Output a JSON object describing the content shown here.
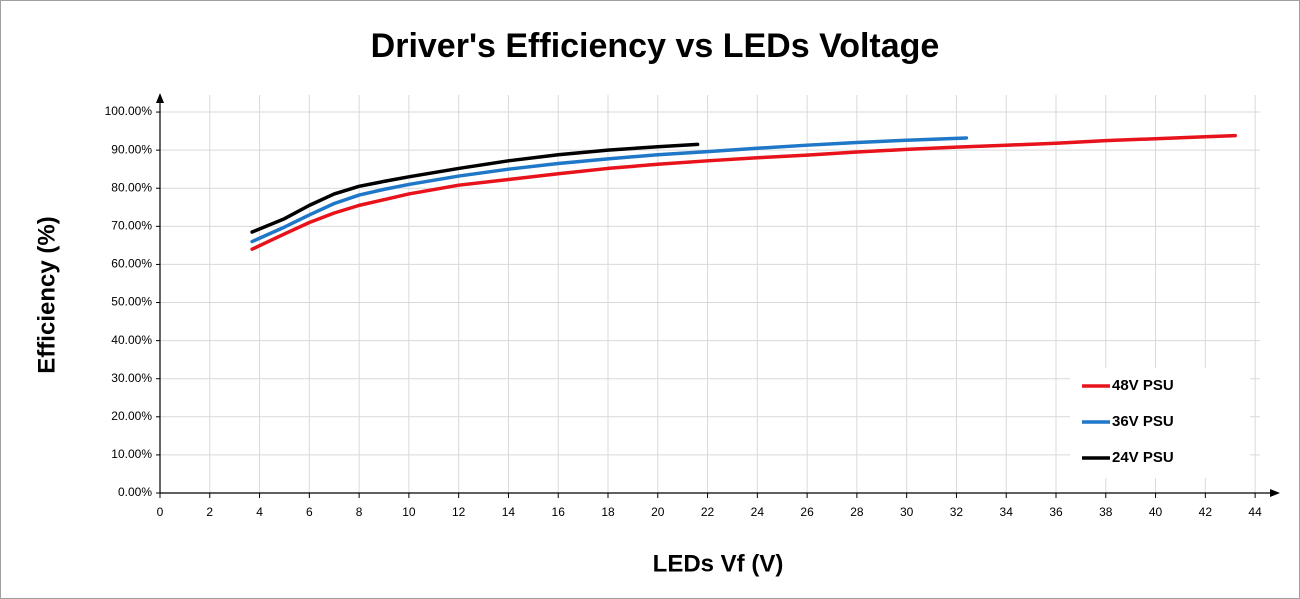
{
  "chart_data": {
    "type": "line",
    "title": "Driver's Efficiency vs LEDs Voltage",
    "x_label": "LEDs Vf (V)",
    "y_label": "Efficiency (%)",
    "xlim": [
      0,
      45
    ],
    "ylim": [
      0,
      105
    ],
    "xticks": [
      0,
      2,
      4,
      6,
      8,
      10,
      12,
      14,
      16,
      18,
      20,
      22,
      24,
      26,
      28,
      30,
      32,
      34,
      36,
      38,
      40,
      42,
      44
    ],
    "yticks": [
      {
        "value": 0,
        "label": "0.00%"
      },
      {
        "value": 10,
        "label": "10.00%"
      },
      {
        "value": 20,
        "label": "20.00%"
      },
      {
        "value": 30,
        "label": "30.00%"
      },
      {
        "value": 40,
        "label": "40.00%"
      },
      {
        "value": 50,
        "label": "50.00%"
      },
      {
        "value": 60,
        "label": "60.00%"
      },
      {
        "value": 70,
        "label": "70.00%"
      },
      {
        "value": 80,
        "label": "80.00%"
      },
      {
        "value": 90,
        "label": "90.00%"
      },
      {
        "value": 100,
        "label": "100.00%"
      }
    ],
    "grid": true,
    "legend": "lower right",
    "series": [
      {
        "name": "48V PSU",
        "color": "#e8121b",
        "x": [
          3.7,
          5,
          6,
          7,
          8,
          9,
          10,
          12,
          14,
          16,
          18,
          20,
          22,
          24,
          26,
          28,
          30,
          32,
          34,
          36,
          38,
          40,
          42,
          43.2
        ],
        "values": [
          64,
          68,
          71,
          73.5,
          75.5,
          77,
          78.5,
          80.8,
          82.3,
          83.8,
          85.2,
          86.3,
          87.2,
          88,
          88.7,
          89.5,
          90.2,
          90.8,
          91.3,
          91.8,
          92.5,
          93,
          93.5,
          93.8
        ]
      },
      {
        "name": "36V PSU",
        "color": "#1f77c8",
        "x": [
          3.7,
          5,
          6,
          7,
          8,
          9,
          10,
          12,
          14,
          16,
          18,
          20,
          22,
          24,
          26,
          28,
          30,
          32.4
        ],
        "values": [
          66,
          69.8,
          73,
          76,
          78.2,
          79.7,
          81,
          83.2,
          85,
          86.5,
          87.7,
          88.8,
          89.6,
          90.5,
          91.3,
          92,
          92.6,
          93.2
        ]
      },
      {
        "name": "24V PSU",
        "color": "#000000",
        "x": [
          3.7,
          5,
          6,
          7,
          8,
          9,
          10,
          12,
          14,
          16,
          18,
          20,
          21.6
        ],
        "values": [
          68.5,
          72,
          75.5,
          78.5,
          80.5,
          81.8,
          83,
          85.2,
          87.2,
          88.8,
          90,
          90.9,
          91.5
        ]
      }
    ]
  }
}
